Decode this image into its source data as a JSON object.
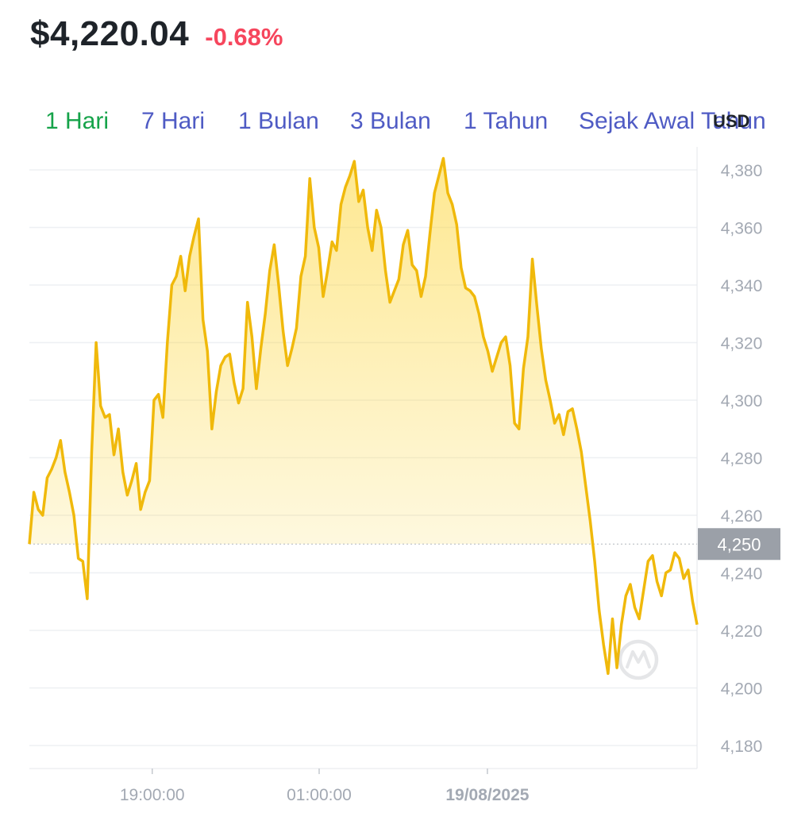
{
  "header": {
    "price": "$4,220.04",
    "change": "-0.68%",
    "change_color": "#f6465d"
  },
  "tabs": [
    {
      "label": "1 Hari",
      "active": true
    },
    {
      "label": "7 Hari",
      "active": false
    },
    {
      "label": "1 Bulan",
      "active": false
    },
    {
      "label": "3 Bulan",
      "active": false
    },
    {
      "label": "1 Tahun",
      "active": false
    },
    {
      "label": "Sejak Awal Tahun",
      "active": false
    }
  ],
  "tab_colors": {
    "active": "#16a34a",
    "inactive": "#4f5bc4"
  },
  "currency": "USD",
  "chart_data": {
    "type": "area",
    "ylim": [
      4172,
      4388
    ],
    "yticks": [
      4180,
      4200,
      4220,
      4240,
      4260,
      4280,
      4300,
      4320,
      4340,
      4360,
      4380
    ],
    "ytick_labels": [
      "4,180",
      "4,200",
      "4,220",
      "4,240",
      "4,260",
      "4,280",
      "4,300",
      "4,320",
      "4,340",
      "4,360",
      "4,380"
    ],
    "xticks": [
      {
        "label": "19:00:00",
        "pos": 0.184,
        "bold": false
      },
      {
        "label": "01:00:00",
        "pos": 0.434,
        "bold": false
      },
      {
        "label": "19/08/2025",
        "pos": 0.686,
        "bold": true
      }
    ],
    "reference": {
      "value": 4250,
      "label": "4,250"
    },
    "line_color": "#f0b90b",
    "values": [
      4250,
      4268,
      4262,
      4260,
      4273,
      4276,
      4280,
      4286,
      4275,
      4268,
      4260,
      4245,
      4244,
      4231,
      4282,
      4320,
      4298,
      4294,
      4295,
      4281,
      4290,
      4275,
      4267,
      4272,
      4278,
      4262,
      4268,
      4272,
      4300,
      4302,
      4294,
      4320,
      4340,
      4343,
      4350,
      4338,
      4350,
      4357,
      4363,
      4328,
      4317,
      4290,
      4303,
      4312,
      4315,
      4316,
      4306,
      4299,
      4304,
      4334,
      4322,
      4304,
      4318,
      4330,
      4345,
      4354,
      4340,
      4324,
      4312,
      4318,
      4325,
      4343,
      4350,
      4377,
      4360,
      4353,
      4336,
      4345,
      4355,
      4352,
      4368,
      4374,
      4378,
      4383,
      4369,
      4373,
      4360,
      4352,
      4366,
      4360,
      4345,
      4334,
      4338,
      4342,
      4354,
      4359,
      4347,
      4345,
      4336,
      4343,
      4358,
      4372,
      4378,
      4384,
      4372,
      4368,
      4361,
      4346,
      4339,
      4338,
      4336,
      4330,
      4322,
      4317,
      4310,
      4315,
      4320,
      4322,
      4312,
      4292,
      4290,
      4311,
      4322,
      4349,
      4333,
      4318,
      4307,
      4300,
      4292,
      4295,
      4288,
      4296,
      4297,
      4290,
      4282,
      4270,
      4258,
      4244,
      4227,
      4215,
      4205,
      4224,
      4207,
      4222,
      4232,
      4236,
      4228,
      4224,
      4234,
      4244,
      4246,
      4237,
      4232,
      4240,
      4241,
      4247,
      4245,
      4238,
      4241,
      4230,
      4222
    ]
  }
}
